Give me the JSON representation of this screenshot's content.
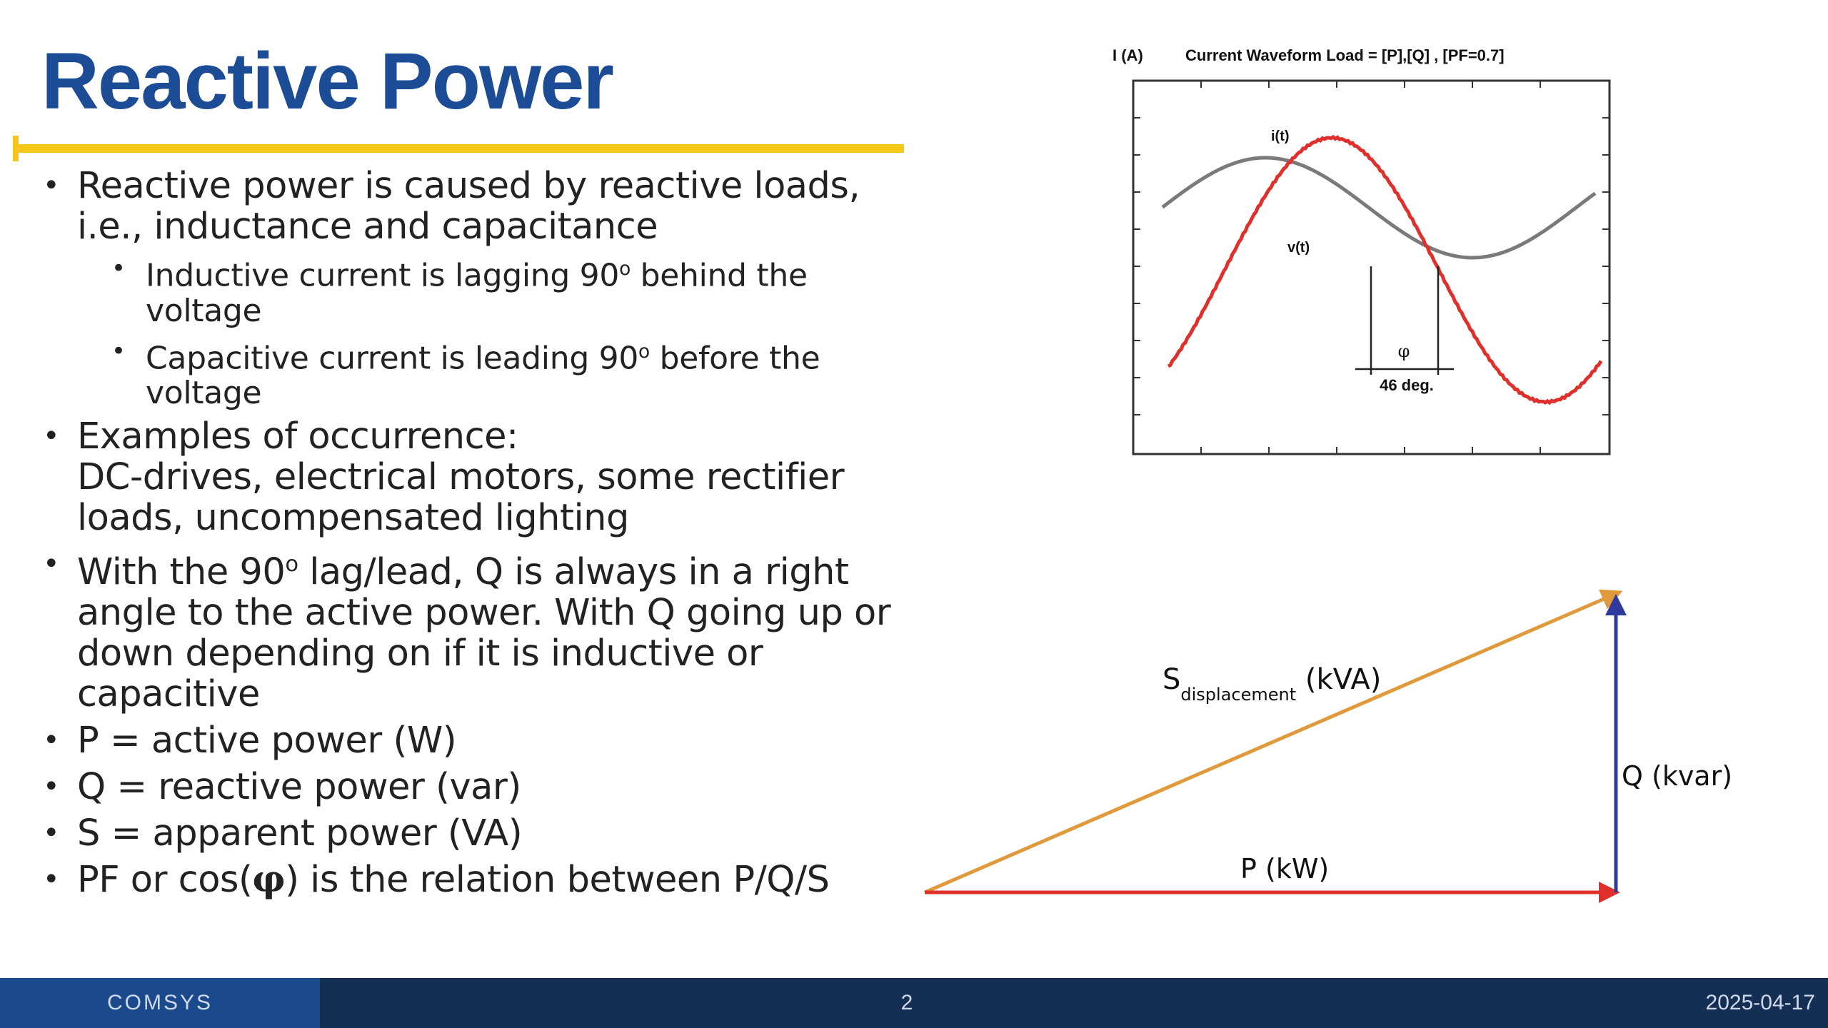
{
  "slide": {
    "title": "Reactive Power"
  },
  "bullets": {
    "b1_line1": "Reactive power is caused by reactive loads,",
    "b1_line2": "i.e., inductance and capacitance",
    "sub1_text": "Inductive current is lagging 90",
    "sub1_degree": "o",
    "sub1_after": " behind the",
    "sub1_line2": "voltage",
    "sub2_text": "Capacitive current is leading 90",
    "sub2_degree": "o",
    "sub2_after": " before the",
    "sub2_line2": "voltage",
    "b2_line1": "Examples of occurrence:",
    "b2_line2": "DC-drives, electrical motors, some rectifier",
    "b2_line3": "loads, uncompensated lighting",
    "b3_text": "With the 90",
    "b3_degree": "o",
    "b3_after": " lag/lead, Q is always in a right",
    "b3_line2": "angle to the active power. With Q going up or",
    "b3_line3": "down depending on if it is inductive or",
    "b3_line4": "capacitive",
    "b4": "P = active power (W)",
    "b5": "Q = reactive power (var)",
    "b6": "S = apparent power (VA)",
    "b7_pre": "PF or cos(",
    "b7_phi": "φ",
    "b7_post": ") is the relation between P/Q/S"
  },
  "waveform": {
    "y_label": "I (A)",
    "title": "Current Waveform Load = [P],[Q] , [PF=0.7]",
    "current_label": "i(t)",
    "voltage_label": "v(t)",
    "phase_symbol": "φ",
    "phase_label": "46 deg.",
    "phase_shift_deg": 46,
    "power_factor": 0.7,
    "current_color": "#e0302c",
    "voltage_color": "#7a7a7a"
  },
  "triangle": {
    "s_label": "S",
    "s_subscript": "displacement",
    "s_unit": " (kVA)",
    "p_label": "P (kW)",
    "q_label": "Q (kvar)",
    "s_color": "#e09a3c",
    "p_color": "#e0302c",
    "q_color": "#2e3a9c"
  },
  "footer": {
    "brand": "COMSYS",
    "page": "2",
    "date": "2025-04-17"
  },
  "colors": {
    "title": "#1d4c96",
    "accent_rule": "#f5c518",
    "footer_bg": "#142e54",
    "footer_brand_bg": "#1a4a8c"
  }
}
